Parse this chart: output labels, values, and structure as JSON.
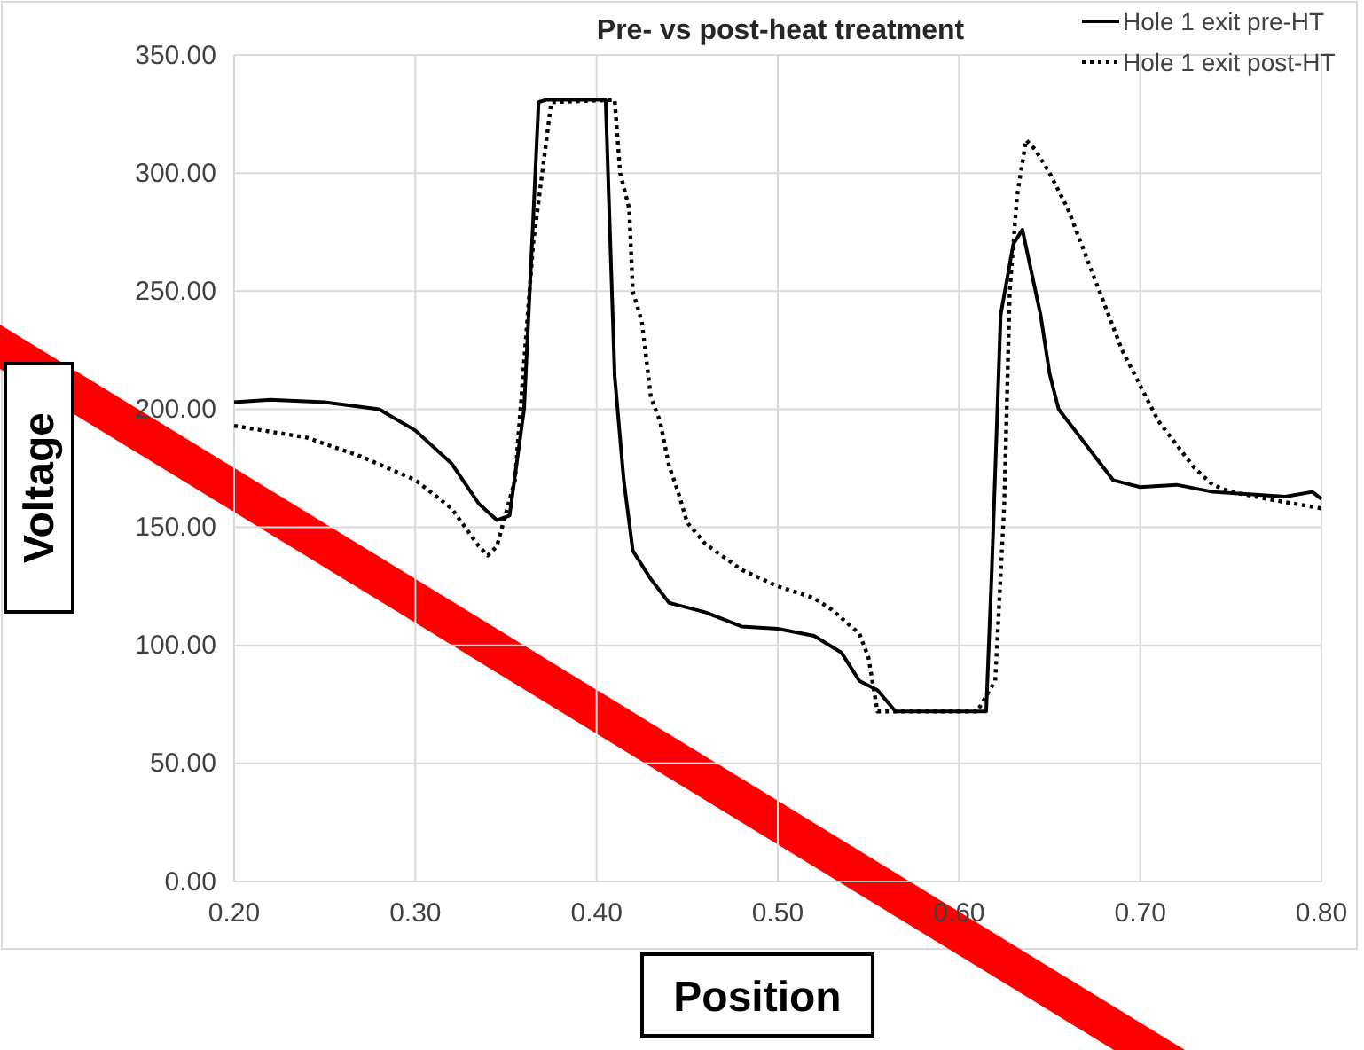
{
  "chart_data": {
    "type": "line",
    "title": "Pre- vs post-heat treatment",
    "xlabel": "Position",
    "ylabel": "Voltage",
    "xlim": [
      0.2,
      0.8
    ],
    "xticks": [
      {
        "value": 0.2,
        "label": "0.20"
      },
      {
        "value": 0.3,
        "label": "0.30"
      },
      {
        "value": 0.4,
        "label": "0.40"
      },
      {
        "value": 0.5,
        "label": "0.50"
      },
      {
        "value": 0.6,
        "label": "0.60"
      },
      {
        "value": 0.7,
        "label": "0.70"
      },
      {
        "value": 0.8,
        "label": "0.80"
      }
    ],
    "ylim": [
      0,
      350
    ],
    "yticks": [
      {
        "value": 0,
        "label": "0.00"
      },
      {
        "value": 50,
        "label": "50.00"
      },
      {
        "value": 100,
        "label": "100.00"
      },
      {
        "value": 150,
        "label": "150.00"
      },
      {
        "value": 200,
        "label": "200.00"
      },
      {
        "value": 250,
        "label": "250.00"
      },
      {
        "value": 300,
        "label": "300.00"
      },
      {
        "value": 350,
        "label": "350.00"
      }
    ],
    "grid": true,
    "legend": "top right",
    "series": [
      {
        "name": "Hole 1 exit pre-HT",
        "color": "#000000",
        "line_style": "solid",
        "x": [
          0.2,
          0.22,
          0.25,
          0.28,
          0.3,
          0.32,
          0.335,
          0.345,
          0.352,
          0.36,
          0.365,
          0.368,
          0.372,
          0.405,
          0.407,
          0.41,
          0.415,
          0.42,
          0.43,
          0.44,
          0.46,
          0.48,
          0.5,
          0.52,
          0.535,
          0.545,
          0.555,
          0.565,
          0.615,
          0.618,
          0.623,
          0.63,
          0.635,
          0.64,
          0.645,
          0.65,
          0.655,
          0.665,
          0.675,
          0.685,
          0.7,
          0.72,
          0.74,
          0.76,
          0.78,
          0.795,
          0.8
        ],
        "values": [
          203,
          204,
          203,
          200,
          191,
          177,
          160,
          153,
          155,
          200,
          280,
          330,
          331,
          331,
          284,
          214,
          170,
          140,
          128,
          118,
          114,
          108,
          107,
          104,
          97,
          85,
          81,
          72,
          72,
          130,
          240,
          270,
          276,
          258,
          240,
          215,
          200,
          190,
          180,
          170,
          167,
          168,
          165,
          164,
          163,
          165,
          162
        ]
      },
      {
        "name": "Hole 1 exit post-HT",
        "color": "#000000",
        "line_style": "dotted",
        "x": [
          0.2,
          0.24,
          0.27,
          0.3,
          0.32,
          0.335,
          0.34,
          0.345,
          0.355,
          0.365,
          0.375,
          0.41,
          0.413,
          0.418,
          0.42,
          0.425,
          0.43,
          0.435,
          0.44,
          0.445,
          0.45,
          0.46,
          0.48,
          0.5,
          0.52,
          0.53,
          0.545,
          0.55,
          0.555,
          0.61,
          0.62,
          0.625,
          0.628,
          0.632,
          0.637,
          0.642,
          0.65,
          0.66,
          0.67,
          0.68,
          0.69,
          0.7,
          0.71,
          0.72,
          0.73,
          0.74,
          0.75,
          0.77,
          0.8
        ],
        "values": [
          193,
          188,
          180,
          170,
          158,
          142,
          138,
          142,
          170,
          270,
          330,
          331,
          300,
          285,
          250,
          237,
          205,
          195,
          176,
          165,
          152,
          143,
          132,
          125,
          120,
          115,
          105,
          95,
          72,
          72,
          85,
          160,
          250,
          290,
          314,
          310,
          300,
          285,
          265,
          245,
          225,
          210,
          195,
          185,
          175,
          168,
          165,
          162,
          158
        ]
      }
    ]
  }
}
